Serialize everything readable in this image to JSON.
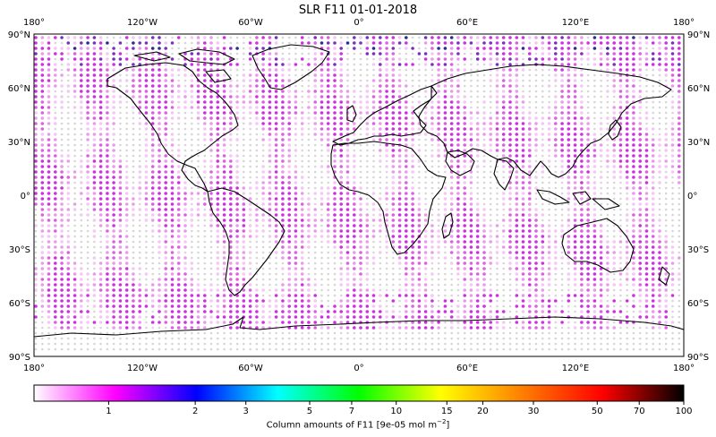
{
  "title": "SLR F11 01-01-2018",
  "map": {
    "lon_ticks": [
      "180°",
      "120°W",
      "60°W",
      "0°",
      "60°E",
      "120°E",
      "180°"
    ],
    "lat_ticks": [
      "90°N",
      "60°N",
      "30°N",
      "0°",
      "30°S",
      "60°S",
      "90°S"
    ],
    "dot_colors": {
      "empty": "#d7d7d7",
      "pale": "#f3c8f3",
      "light": "#e99be9",
      "mid": "#dd5fe2",
      "strong": "#cf2ee3",
      "dark": "#7a2fbf",
      "navy": "#2b2e8c"
    }
  },
  "colorbar": {
    "label": "Column amounts of F11 [9e-05 mol m",
    "label_sup": "−2",
    "label_end": "]",
    "ticks": [
      "1",
      "2",
      "3",
      "5",
      "7",
      "10",
      "15",
      "20",
      "30",
      "50",
      "70",
      "100"
    ],
    "colors": [
      "#ffffff",
      "#ff00ff",
      "#0000ff",
      "#00ffff",
      "#00ff00",
      "#ffff00",
      "#ff8000",
      "#ff0000",
      "#000000"
    ]
  }
}
